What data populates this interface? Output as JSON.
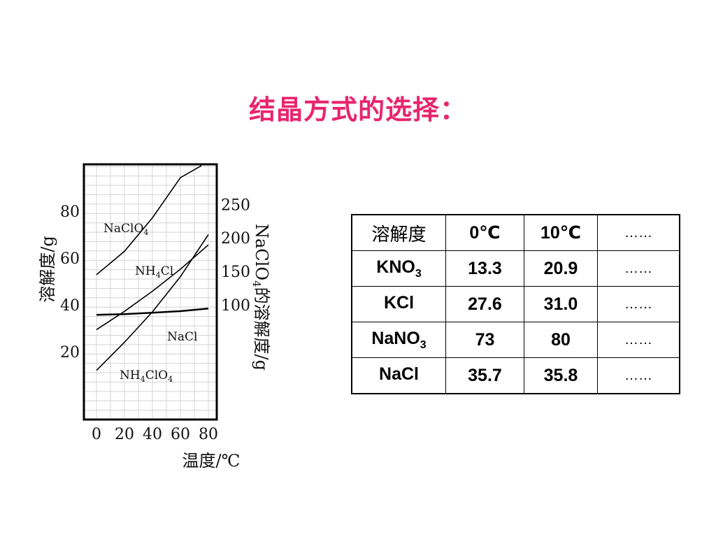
{
  "slide": {
    "title": "结晶方式的选择："
  },
  "chart_data": {
    "type": "line",
    "xlabel": "温度/℃",
    "ylabel_left": "溶解度/g",
    "ylabel_right_prefix": "NaClO",
    "ylabel_right_sub": "4",
    "ylabel_right_suffix": "的溶解度/g",
    "x_ticks": [
      0,
      20,
      40,
      60,
      80
    ],
    "y_ticks_left": [
      20,
      40,
      60,
      80
    ],
    "y_ticks_right": [
      100,
      150,
      200,
      250
    ],
    "xlim": [
      -9,
      86
    ],
    "ylim": [
      -9,
      100
    ],
    "right_axis_transform": "right = 3.5 * left - 40",
    "grid": true,
    "series": [
      {
        "name": "NaClO",
        "name_sub": "4",
        "name_suffix": "",
        "axis": "right",
        "x": [
          0,
          20,
          40,
          60,
          75
        ],
        "y": [
          145,
          180,
          230,
          290,
          308
        ]
      },
      {
        "name": "NH",
        "name_sub": "4",
        "name_suffix": "Cl",
        "axis": "left",
        "x": [
          0,
          20,
          40,
          60,
          80
        ],
        "y": [
          29.4,
          37.2,
          45.8,
          55.2,
          65.6
        ]
      },
      {
        "name": "NaCl",
        "name_sub": "",
        "name_suffix": "",
        "axis": "left",
        "x": [
          0,
          20,
          40,
          60,
          80
        ],
        "y": [
          35.7,
          36.0,
          36.6,
          37.3,
          38.4
        ]
      },
      {
        "name": "NH",
        "name_sub": "4",
        "name_suffix": "ClO",
        "name_sub2": "4",
        "axis": "left",
        "x": [
          0,
          20,
          40,
          60,
          80
        ],
        "y": [
          12,
          24,
          37,
          52,
          70
        ]
      }
    ]
  },
  "table": {
    "header": {
      "label": "溶解度",
      "t0": "0℃",
      "t10": "10℃",
      "more": "……"
    },
    "rows": [
      {
        "main": "KNO",
        "sub": "3",
        "v0": "13.3",
        "v10": "20.9",
        "more": "……"
      },
      {
        "main": "KCl",
        "sub": "",
        "v0": "27.6",
        "v10": "31.0",
        "more": "……"
      },
      {
        "main": "NaNO",
        "sub": "3",
        "v0": "73",
        "v10": "80",
        "more": "……"
      },
      {
        "main": "NaCl",
        "sub": "",
        "v0": "35.7",
        "v10": "35.8",
        "more": "……"
      }
    ]
  }
}
